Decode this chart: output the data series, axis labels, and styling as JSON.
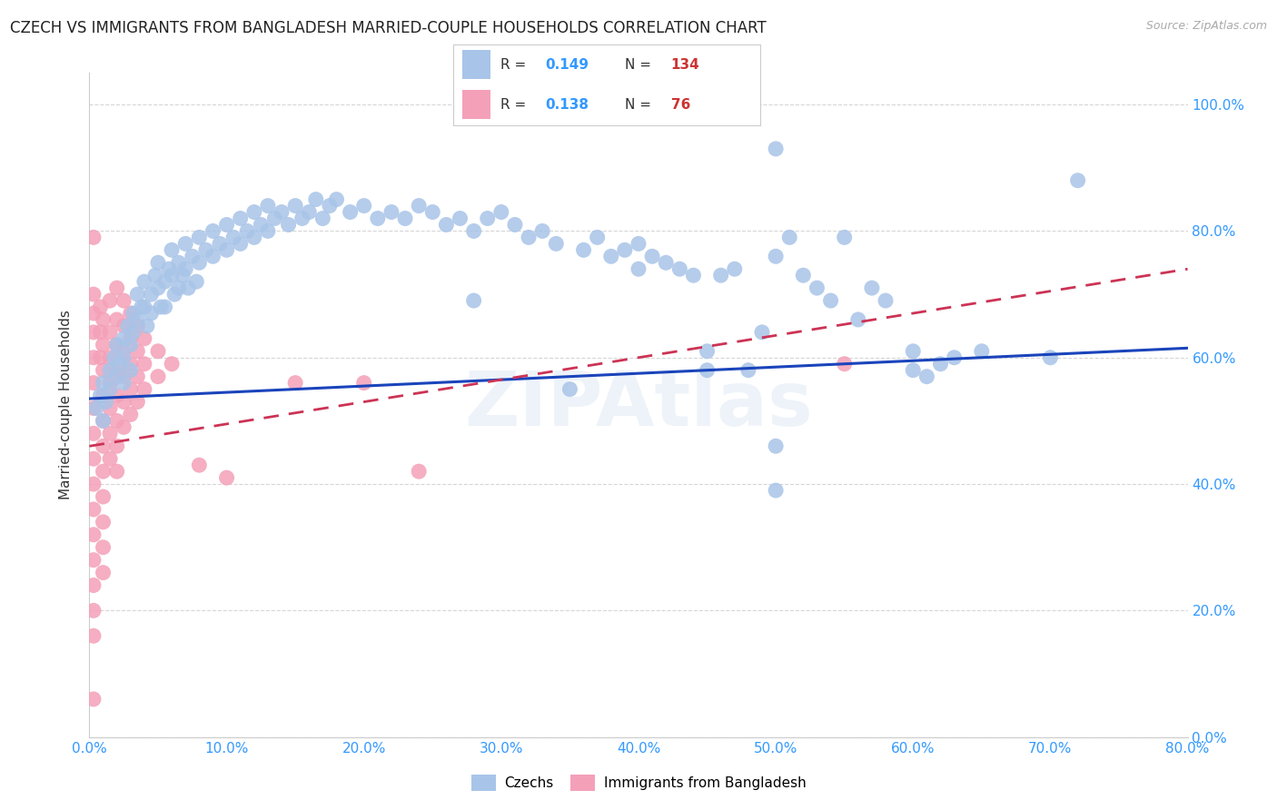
{
  "title": "CZECH VS IMMIGRANTS FROM BANGLADESH MARRIED-COUPLE HOUSEHOLDS CORRELATION CHART",
  "source": "Source: ZipAtlas.com",
  "ylabel_label": "Married-couple Households",
  "xmin": 0.0,
  "xmax": 0.8,
  "ymin": 0.0,
  "ymax": 1.05,
  "watermark": "ZIPAtlas",
  "legend_label_blue": "Czechs",
  "legend_label_pink": "Immigrants from Bangladesh",
  "blue_R": "0.149",
  "blue_N": "134",
  "pink_R": "0.138",
  "pink_N": "76",
  "blue_color": "#a8c4e8",
  "pink_color": "#f4a0b8",
  "blue_line_color": "#1a44bb",
  "pink_line_color": "#cc3355",
  "blue_line_y0": 0.535,
  "blue_line_y1": 0.615,
  "pink_line_y0": 0.46,
  "pink_line_y1": 0.74,
  "blue_scatter": [
    [
      0.005,
      0.52
    ],
    [
      0.008,
      0.54
    ],
    [
      0.01,
      0.5
    ],
    [
      0.01,
      0.56
    ],
    [
      0.012,
      0.53
    ],
    [
      0.015,
      0.58
    ],
    [
      0.015,
      0.55
    ],
    [
      0.018,
      0.6
    ],
    [
      0.02,
      0.57
    ],
    [
      0.02,
      0.62
    ],
    [
      0.022,
      0.59
    ],
    [
      0.025,
      0.63
    ],
    [
      0.025,
      0.6
    ],
    [
      0.025,
      0.56
    ],
    [
      0.028,
      0.65
    ],
    [
      0.03,
      0.62
    ],
    [
      0.03,
      0.58
    ],
    [
      0.032,
      0.67
    ],
    [
      0.032,
      0.64
    ],
    [
      0.035,
      0.7
    ],
    [
      0.035,
      0.66
    ],
    [
      0.038,
      0.68
    ],
    [
      0.04,
      0.72
    ],
    [
      0.04,
      0.68
    ],
    [
      0.042,
      0.65
    ],
    [
      0.045,
      0.7
    ],
    [
      0.045,
      0.67
    ],
    [
      0.048,
      0.73
    ],
    [
      0.05,
      0.75
    ],
    [
      0.05,
      0.71
    ],
    [
      0.052,
      0.68
    ],
    [
      0.055,
      0.72
    ],
    [
      0.055,
      0.68
    ],
    [
      0.058,
      0.74
    ],
    [
      0.06,
      0.77
    ],
    [
      0.06,
      0.73
    ],
    [
      0.062,
      0.7
    ],
    [
      0.065,
      0.75
    ],
    [
      0.065,
      0.71
    ],
    [
      0.068,
      0.73
    ],
    [
      0.07,
      0.78
    ],
    [
      0.07,
      0.74
    ],
    [
      0.072,
      0.71
    ],
    [
      0.075,
      0.76
    ],
    [
      0.078,
      0.72
    ],
    [
      0.08,
      0.79
    ],
    [
      0.08,
      0.75
    ],
    [
      0.085,
      0.77
    ],
    [
      0.09,
      0.8
    ],
    [
      0.09,
      0.76
    ],
    [
      0.095,
      0.78
    ],
    [
      0.1,
      0.81
    ],
    [
      0.1,
      0.77
    ],
    [
      0.105,
      0.79
    ],
    [
      0.11,
      0.82
    ],
    [
      0.11,
      0.78
    ],
    [
      0.115,
      0.8
    ],
    [
      0.12,
      0.83
    ],
    [
      0.12,
      0.79
    ],
    [
      0.125,
      0.81
    ],
    [
      0.13,
      0.84
    ],
    [
      0.13,
      0.8
    ],
    [
      0.135,
      0.82
    ],
    [
      0.14,
      0.83
    ],
    [
      0.145,
      0.81
    ],
    [
      0.15,
      0.84
    ],
    [
      0.155,
      0.82
    ],
    [
      0.16,
      0.83
    ],
    [
      0.165,
      0.85
    ],
    [
      0.17,
      0.82
    ],
    [
      0.175,
      0.84
    ],
    [
      0.18,
      0.85
    ],
    [
      0.19,
      0.83
    ],
    [
      0.2,
      0.84
    ],
    [
      0.21,
      0.82
    ],
    [
      0.22,
      0.83
    ],
    [
      0.23,
      0.82
    ],
    [
      0.24,
      0.84
    ],
    [
      0.25,
      0.83
    ],
    [
      0.26,
      0.81
    ],
    [
      0.27,
      0.82
    ],
    [
      0.28,
      0.8
    ],
    [
      0.29,
      0.82
    ],
    [
      0.3,
      0.83
    ],
    [
      0.31,
      0.81
    ],
    [
      0.32,
      0.79
    ],
    [
      0.33,
      0.8
    ],
    [
      0.34,
      0.78
    ],
    [
      0.28,
      0.69
    ],
    [
      0.35,
      0.55
    ],
    [
      0.36,
      0.77
    ],
    [
      0.37,
      0.79
    ],
    [
      0.38,
      0.76
    ],
    [
      0.39,
      0.77
    ],
    [
      0.4,
      0.78
    ],
    [
      0.4,
      0.74
    ],
    [
      0.41,
      0.76
    ],
    [
      0.42,
      0.75
    ],
    [
      0.43,
      0.74
    ],
    [
      0.44,
      0.73
    ],
    [
      0.45,
      0.58
    ],
    [
      0.45,
      0.61
    ],
    [
      0.46,
      0.73
    ],
    [
      0.47,
      0.74
    ],
    [
      0.48,
      0.58
    ],
    [
      0.49,
      0.64
    ],
    [
      0.5,
      0.93
    ],
    [
      0.5,
      0.76
    ],
    [
      0.5,
      0.46
    ],
    [
      0.5,
      0.39
    ],
    [
      0.51,
      0.79
    ],
    [
      0.52,
      0.73
    ],
    [
      0.53,
      0.71
    ],
    [
      0.54,
      0.69
    ],
    [
      0.55,
      0.79
    ],
    [
      0.56,
      0.66
    ],
    [
      0.57,
      0.71
    ],
    [
      0.58,
      0.69
    ],
    [
      0.6,
      0.61
    ],
    [
      0.6,
      0.58
    ],
    [
      0.61,
      0.57
    ],
    [
      0.62,
      0.59
    ],
    [
      0.63,
      0.6
    ],
    [
      0.65,
      0.61
    ],
    [
      0.7,
      0.6
    ],
    [
      0.72,
      0.88
    ]
  ],
  "pink_scatter": [
    [
      0.003,
      0.79
    ],
    [
      0.003,
      0.7
    ],
    [
      0.003,
      0.67
    ],
    [
      0.003,
      0.64
    ],
    [
      0.003,
      0.6
    ],
    [
      0.003,
      0.56
    ],
    [
      0.003,
      0.52
    ],
    [
      0.003,
      0.48
    ],
    [
      0.003,
      0.44
    ],
    [
      0.003,
      0.4
    ],
    [
      0.003,
      0.36
    ],
    [
      0.003,
      0.32
    ],
    [
      0.003,
      0.28
    ],
    [
      0.003,
      0.24
    ],
    [
      0.003,
      0.2
    ],
    [
      0.003,
      0.16
    ],
    [
      0.003,
      0.06
    ],
    [
      0.008,
      0.68
    ],
    [
      0.008,
      0.64
    ],
    [
      0.008,
      0.6
    ],
    [
      0.01,
      0.66
    ],
    [
      0.01,
      0.62
    ],
    [
      0.01,
      0.58
    ],
    [
      0.01,
      0.54
    ],
    [
      0.01,
      0.5
    ],
    [
      0.01,
      0.46
    ],
    [
      0.01,
      0.42
    ],
    [
      0.01,
      0.38
    ],
    [
      0.01,
      0.34
    ],
    [
      0.01,
      0.3
    ],
    [
      0.01,
      0.26
    ],
    [
      0.015,
      0.69
    ],
    [
      0.015,
      0.64
    ],
    [
      0.015,
      0.6
    ],
    [
      0.015,
      0.56
    ],
    [
      0.015,
      0.52
    ],
    [
      0.015,
      0.48
    ],
    [
      0.015,
      0.44
    ],
    [
      0.02,
      0.71
    ],
    [
      0.02,
      0.66
    ],
    [
      0.02,
      0.62
    ],
    [
      0.02,
      0.58
    ],
    [
      0.02,
      0.54
    ],
    [
      0.02,
      0.5
    ],
    [
      0.02,
      0.46
    ],
    [
      0.02,
      0.42
    ],
    [
      0.025,
      0.69
    ],
    [
      0.025,
      0.65
    ],
    [
      0.025,
      0.61
    ],
    [
      0.025,
      0.57
    ],
    [
      0.025,
      0.53
    ],
    [
      0.025,
      0.49
    ],
    [
      0.03,
      0.67
    ],
    [
      0.03,
      0.63
    ],
    [
      0.03,
      0.59
    ],
    [
      0.03,
      0.55
    ],
    [
      0.03,
      0.51
    ],
    [
      0.035,
      0.65
    ],
    [
      0.035,
      0.61
    ],
    [
      0.035,
      0.57
    ],
    [
      0.035,
      0.53
    ],
    [
      0.04,
      0.63
    ],
    [
      0.04,
      0.59
    ],
    [
      0.04,
      0.55
    ],
    [
      0.05,
      0.61
    ],
    [
      0.05,
      0.57
    ],
    [
      0.06,
      0.59
    ],
    [
      0.08,
      0.43
    ],
    [
      0.1,
      0.41
    ],
    [
      0.15,
      0.56
    ],
    [
      0.2,
      0.56
    ],
    [
      0.24,
      0.42
    ],
    [
      0.55,
      0.59
    ]
  ],
  "grid_color": "#cccccc",
  "background_color": "#ffffff",
  "title_fontsize": 12,
  "axis_label_fontsize": 11,
  "tick_fontsize": 11,
  "watermark_color": "#d0dff0",
  "watermark_fontsize": 60,
  "watermark_alpha": 0.35,
  "right_ytick_color": "#3399ff",
  "xtick_color": "#3399ff"
}
